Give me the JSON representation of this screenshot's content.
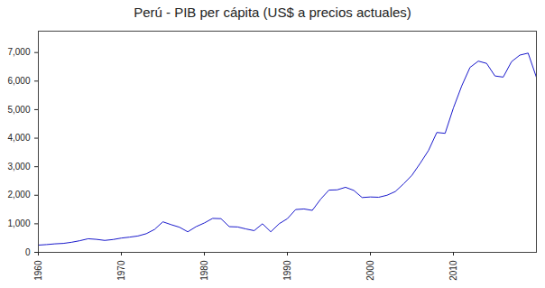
{
  "chart_data": {
    "type": "line",
    "title": "Perú - PIB per cápita (US$ a precios actuales)",
    "x": [
      1960,
      1961,
      1962,
      1963,
      1964,
      1965,
      1966,
      1967,
      1968,
      1969,
      1970,
      1971,
      1972,
      1973,
      1974,
      1975,
      1976,
      1977,
      1978,
      1979,
      1980,
      1981,
      1982,
      1983,
      1984,
      1985,
      1986,
      1987,
      1988,
      1989,
      1990,
      1991,
      1992,
      1993,
      1994,
      1995,
      1996,
      1997,
      1998,
      1999,
      2000,
      2001,
      2002,
      2003,
      2004,
      2005,
      2006,
      2007,
      2008,
      2009,
      2010,
      2011,
      2012,
      2013,
      2014,
      2015,
      2016,
      2017,
      2018,
      2019,
      2020
    ],
    "values": [
      253,
      272,
      298,
      313,
      353,
      408,
      476,
      455,
      418,
      449,
      500,
      533,
      573,
      653,
      803,
      1070,
      970,
      880,
      720,
      900,
      1030,
      1190,
      1180,
      900,
      890,
      820,
      760,
      1000,
      720,
      1000,
      1180,
      1500,
      1520,
      1470,
      1860,
      2180,
      2190,
      2280,
      2170,
      1920,
      1940,
      1930,
      2000,
      2130,
      2400,
      2700,
      3120,
      3570,
      4200,
      4170,
      5060,
      5830,
      6480,
      6700,
      6620,
      6180,
      6140,
      6680,
      6910,
      6980,
      6130
    ],
    "color": "#1a1acc",
    "xlim": [
      1960,
      2020
    ],
    "xticks": [
      1960,
      1970,
      1980,
      1990,
      2000,
      2010
    ],
    "ylim": [
      0,
      7750
    ],
    "yticks": [
      0,
      {
        "value": 1000,
        "label": "1,000"
      },
      {
        "value": 2000,
        "label": "2,000"
      },
      {
        "value": 3000,
        "label": "3,000"
      },
      {
        "value": 4000,
        "label": "4,000"
      },
      {
        "value": 5000,
        "label": "5,000"
      },
      {
        "value": 6000,
        "label": "6,000"
      },
      {
        "value": 7000,
        "label": "7,000"
      }
    ],
    "grid": false
  }
}
